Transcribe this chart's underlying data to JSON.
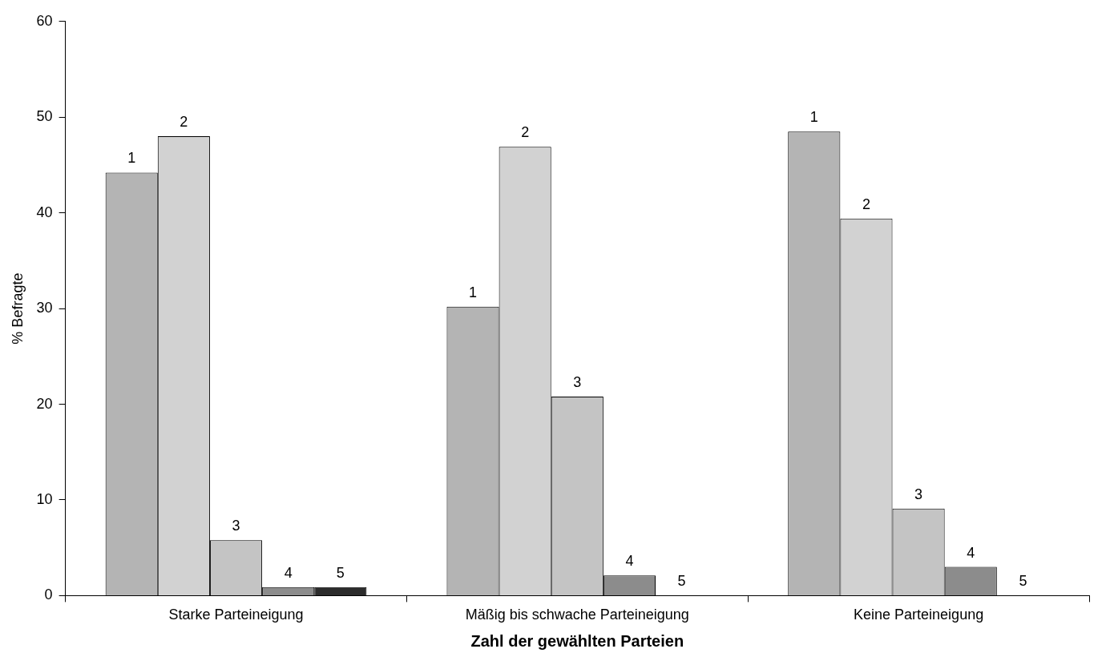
{
  "chart_data": {
    "type": "bar",
    "xlabel": "Zahl der gewählten Parteien",
    "ylabel": "% Befragte",
    "categories": [
      "Starke Parteineigung",
      "Mäßig bis schwache Parteineigung",
      "Keine Parteineigung"
    ],
    "series": [
      {
        "name": "1",
        "color": "#b4b4b4",
        "values": [
          44.2,
          30.2,
          48.5
        ]
      },
      {
        "name": "2",
        "color": "#d2d2d2",
        "values": [
          48.0,
          46.9,
          39.4
        ]
      },
      {
        "name": "3",
        "color": "#c4c4c4",
        "values": [
          5.8,
          20.8,
          9.1
        ]
      },
      {
        "name": "4",
        "color": "#8c8c8c",
        "values": [
          0.9,
          2.1,
          3.0
        ]
      },
      {
        "name": "5",
        "color": "#2c2c2c",
        "values": [
          0.9,
          0,
          0
        ]
      }
    ],
    "ylim": [
      0,
      60
    ],
    "yticks": [
      0,
      10,
      20,
      30,
      40,
      50,
      60
    ],
    "grid": false,
    "legend": false
  }
}
